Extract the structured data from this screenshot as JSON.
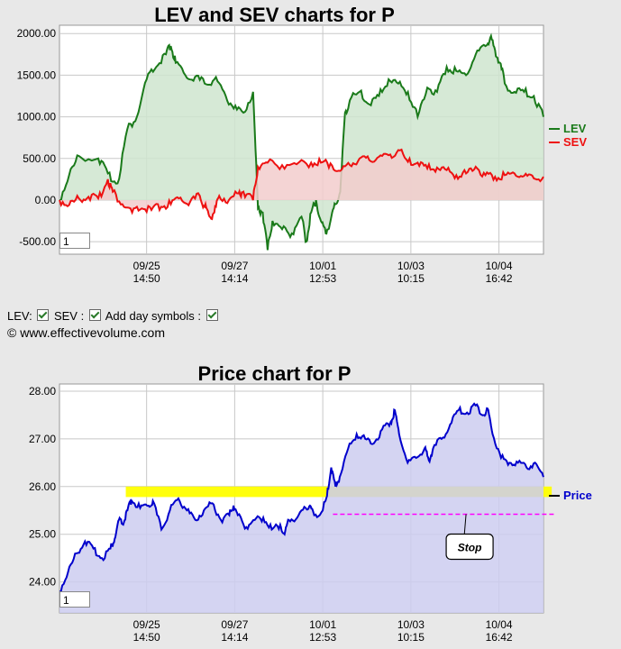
{
  "lev_chart": {
    "title": "LEV and SEV charts for P",
    "zoom_value": "1",
    "legend": [
      {
        "name": "LEV",
        "color": "#1a7a1a"
      },
      {
        "name": "SEV",
        "color": "#ee1111"
      }
    ]
  },
  "price_chart": {
    "title": "Price chart for P",
    "zoom_value": "1",
    "legend": [
      {
        "name": "Price",
        "color": "#0000cc"
      }
    ],
    "stop_label": "Stop"
  },
  "controls": {
    "lev_label": "LEV:",
    "sev_label": "SEV :",
    "day_symbols_label": "Add day symbols :"
  },
  "copyright": "© www.effectivevolume.com",
  "chart_data": [
    {
      "type": "line",
      "title": "LEV and SEV charts for P",
      "x_ticks": [
        "09/25\n14:50",
        "09/27\n14:14",
        "10/01\n12:53",
        "10/03\n10:15",
        "10/04\n16:42"
      ],
      "y_ticks": [
        "2000.00",
        "1500.00",
        "1000.00",
        "500.00",
        "0.00",
        "-500.00"
      ],
      "ylim": [
        -650,
        2100
      ],
      "grid": true,
      "legend_position": "right",
      "series": [
        {
          "name": "LEV",
          "color": "#1a7a1a",
          "fill": "#cfe5cf",
          "points": [
            [
              0,
              0
            ],
            [
              2,
              300
            ],
            [
              4,
              530
            ],
            [
              8,
              500
            ],
            [
              10,
              320
            ],
            [
              12,
              200
            ],
            [
              14,
              850
            ],
            [
              16,
              1000
            ],
            [
              18,
              1450
            ],
            [
              20,
              1600
            ],
            [
              22,
              1750
            ],
            [
              23,
              1850
            ],
            [
              24,
              1650
            ],
            [
              26,
              1500
            ],
            [
              28,
              1480
            ],
            [
              30,
              1400
            ],
            [
              32,
              1450
            ],
            [
              34,
              1300
            ],
            [
              36,
              1100
            ],
            [
              38,
              1050
            ],
            [
              40,
              1300
            ],
            [
              41,
              -100
            ],
            [
              42,
              -150
            ],
            [
              43,
              -600
            ],
            [
              44,
              -250
            ],
            [
              46,
              -350
            ],
            [
              48,
              -400
            ],
            [
              50,
              -200
            ],
            [
              51,
              -500
            ],
            [
              52,
              -150
            ],
            [
              53,
              0
            ],
            [
              54,
              -250
            ],
            [
              55,
              -400
            ],
            [
              56,
              -250
            ],
            [
              57,
              -50
            ],
            [
              58,
              100
            ],
            [
              59,
              1050
            ],
            [
              60,
              1200
            ],
            [
              62,
              1300
            ],
            [
              64,
              1150
            ],
            [
              66,
              1250
            ],
            [
              68,
              1450
            ],
            [
              70,
              1400
            ],
            [
              72,
              1300
            ],
            [
              74,
              1000
            ],
            [
              76,
              1350
            ],
            [
              78,
              1300
            ],
            [
              80,
              1600
            ],
            [
              82,
              1550
            ],
            [
              84,
              1500
            ],
            [
              86,
              1750
            ],
            [
              88,
              1850
            ],
            [
              89,
              1950
            ],
            [
              90,
              1800
            ],
            [
              91,
              1650
            ],
            [
              92,
              1400
            ],
            [
              94,
              1300
            ],
            [
              96,
              1300
            ],
            [
              98,
              1250
            ],
            [
              100,
              1000
            ]
          ]
        },
        {
          "name": "SEV",
          "color": "#ee1111",
          "fill": "#f2cccc",
          "points": [
            [
              0,
              0
            ],
            [
              2,
              -60
            ],
            [
              4,
              20
            ],
            [
              6,
              40
            ],
            [
              8,
              20
            ],
            [
              10,
              250
            ],
            [
              11,
              100
            ],
            [
              13,
              -50
            ],
            [
              15,
              -150
            ],
            [
              17,
              -100
            ],
            [
              19,
              -120
            ],
            [
              21,
              -80
            ],
            [
              23,
              -50
            ],
            [
              25,
              30
            ],
            [
              27,
              -20
            ],
            [
              29,
              50
            ],
            [
              30,
              -80
            ],
            [
              31,
              -200
            ],
            [
              32,
              -150
            ],
            [
              33,
              50
            ],
            [
              35,
              0
            ],
            [
              37,
              80
            ],
            [
              38,
              100
            ],
            [
              40,
              0
            ],
            [
              41,
              400
            ],
            [
              43,
              450
            ],
            [
              46,
              420
            ],
            [
              49,
              430
            ],
            [
              52,
              450
            ],
            [
              54,
              450
            ],
            [
              56,
              440
            ],
            [
              58,
              350
            ],
            [
              60,
              420
            ],
            [
              62,
              500
            ],
            [
              64,
              480
            ],
            [
              66,
              520
            ],
            [
              68,
              540
            ],
            [
              70,
              600
            ],
            [
              72,
              460
            ],
            [
              74,
              450
            ],
            [
              76,
              380
            ],
            [
              78,
              390
            ],
            [
              80,
              360
            ],
            [
              82,
              300
            ],
            [
              84,
              320
            ],
            [
              86,
              400
            ],
            [
              88,
              300
            ],
            [
              90,
              280
            ],
            [
              92,
              300
            ],
            [
              94,
              320
            ],
            [
              96,
              290
            ],
            [
              98,
              260
            ],
            [
              100,
              280
            ]
          ]
        }
      ]
    },
    {
      "type": "area",
      "title": "Price chart for P",
      "x_ticks": [
        "09/25\n14:50",
        "09/27\n14:14",
        "10/01\n12:53",
        "10/03\n10:15",
        "10/04\n16:42"
      ],
      "y_ticks": [
        "28.00",
        "27.00",
        "26.00",
        "25.00",
        "24.00"
      ],
      "ylim": [
        23.35,
        28.15
      ],
      "grid": true,
      "legend_position": "right",
      "annotations": [
        {
          "type": "band",
          "from": 25.78,
          "to": 26.0,
          "color": "#ffff00"
        },
        {
          "type": "stop_line",
          "value": 25.42,
          "color": "#ff00ff",
          "label": "Stop"
        }
      ],
      "series": [
        {
          "name": "Price",
          "color": "#0000cc",
          "fill": "#ccccf0",
          "points": [
            [
              0,
              23.8
            ],
            [
              2,
              24.2
            ],
            [
              4,
              24.6
            ],
            [
              6,
              24.85
            ],
            [
              8,
              24.7
            ],
            [
              10,
              24.5
            ],
            [
              12,
              24.7
            ],
            [
              13,
              24.9
            ],
            [
              14,
              25.3
            ],
            [
              15,
              25.2
            ],
            [
              16,
              25.5
            ],
            [
              17,
              25.7
            ],
            [
              19,
              25.55
            ],
            [
              21,
              25.6
            ],
            [
              22,
              25.7
            ],
            [
              24,
              25.1
            ],
            [
              26,
              25.5
            ],
            [
              28,
              25.75
            ],
            [
              30,
              25.5
            ],
            [
              32,
              25.3
            ],
            [
              34,
              25.5
            ],
            [
              36,
              25.65
            ],
            [
              38,
              25.3
            ],
            [
              40,
              25.4
            ],
            [
              41,
              25.6
            ],
            [
              42,
              25.4
            ],
            [
              44,
              25.15
            ],
            [
              46,
              25.3
            ],
            [
              48,
              25.35
            ],
            [
              50,
              25.1
            ],
            [
              52,
              25.2
            ],
            [
              53,
              25.0
            ],
            [
              54,
              25.3
            ],
            [
              56,
              25.35
            ],
            [
              58,
              25.55
            ],
            [
              59,
              25.6
            ],
            [
              60,
              25.4
            ],
            [
              62,
              25.5
            ],
            [
              63,
              25.8
            ],
            [
              64,
              26.4
            ],
            [
              65,
              26.0
            ],
            [
              66,
              26.2
            ],
            [
              68,
              26.8
            ],
            [
              70,
              27.1
            ],
            [
              72,
              27.0
            ],
            [
              74,
              26.9
            ],
            [
              76,
              27.2
            ],
            [
              78,
              27.35
            ],
            [
              79,
              27.6
            ],
            [
              80,
              27.1
            ],
            [
              82,
              26.5
            ],
            [
              84,
              26.6
            ],
            [
              86,
              26.8
            ],
            [
              87,
              26.55
            ],
            [
              88,
              26.8
            ],
            [
              90,
              27.0
            ],
            [
              92,
              27.3
            ],
            [
              94,
              27.6
            ],
            [
              96,
              27.55
            ],
            [
              98,
              27.7
            ],
            [
              100,
              27.5
            ],
            [
              101,
              27.6
            ],
            [
              102,
              27.1
            ],
            [
              104,
              26.6
            ],
            [
              106,
              26.5
            ],
            [
              108,
              26.5
            ],
            [
              110,
              26.4
            ],
            [
              112,
              26.5
            ],
            [
              114,
              26.2
            ]
          ]
        }
      ]
    }
  ]
}
